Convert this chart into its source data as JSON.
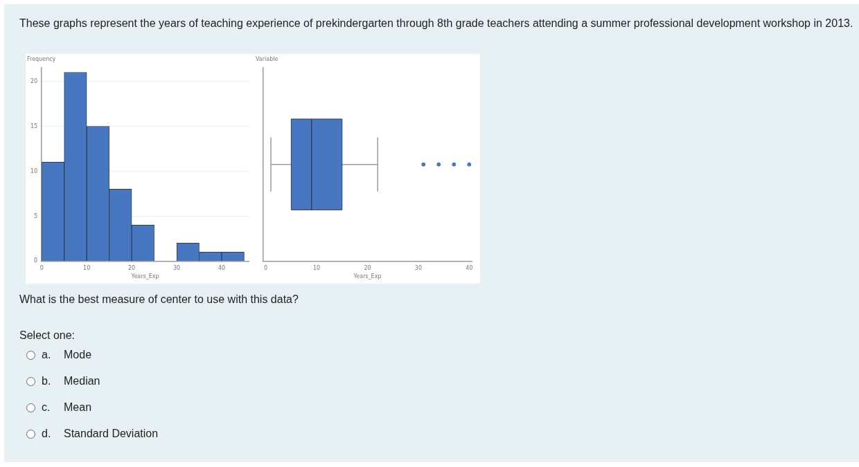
{
  "chart_data": [
    {
      "type": "histogram",
      "title": "These graphs represent the years of teaching experience of prekindergarten through 8th grade teachers attending a summer professional development workshop in 2013.",
      "ylabel": "Frequency",
      "xlabel": "Years_Exp",
      "bins": [
        0,
        5,
        10,
        15,
        20,
        25,
        30,
        35,
        40,
        45
      ],
      "values": [
        11,
        21,
        15,
        8,
        4,
        0,
        2,
        1,
        1
      ],
      "color": "#4677c0",
      "xlim": [
        0,
        46
      ],
      "xticks": [
        0,
        10,
        20,
        30,
        40
      ],
      "ylim": [
        0,
        21.5
      ],
      "yticks": [
        0,
        5,
        10,
        15,
        20
      ],
      "grid": "y"
    },
    {
      "type": "box",
      "orientation": "horizontal",
      "ylabel": "Variable",
      "xlabel": "Years_Exp",
      "categories": [
        null
      ],
      "boxes": [
        {
          "low": 1,
          "q1": 5,
          "median": 9,
          "q3": 15,
          "high": 22,
          "outliers": [
            31,
            34,
            37,
            40
          ]
        }
      ],
      "color": "#4677c0",
      "xlim": [
        -0.5,
        40.5
      ],
      "xticks": [
        0,
        10,
        20,
        30,
        40
      ],
      "annotations": [
        "What is the best measure of center to use with this data?",
        "Select one:",
        "a.",
        "Mode",
        "b.",
        "Median",
        "c.",
        "Mean",
        "d.",
        "Standard Deviation"
      ]
    }
  ]
}
